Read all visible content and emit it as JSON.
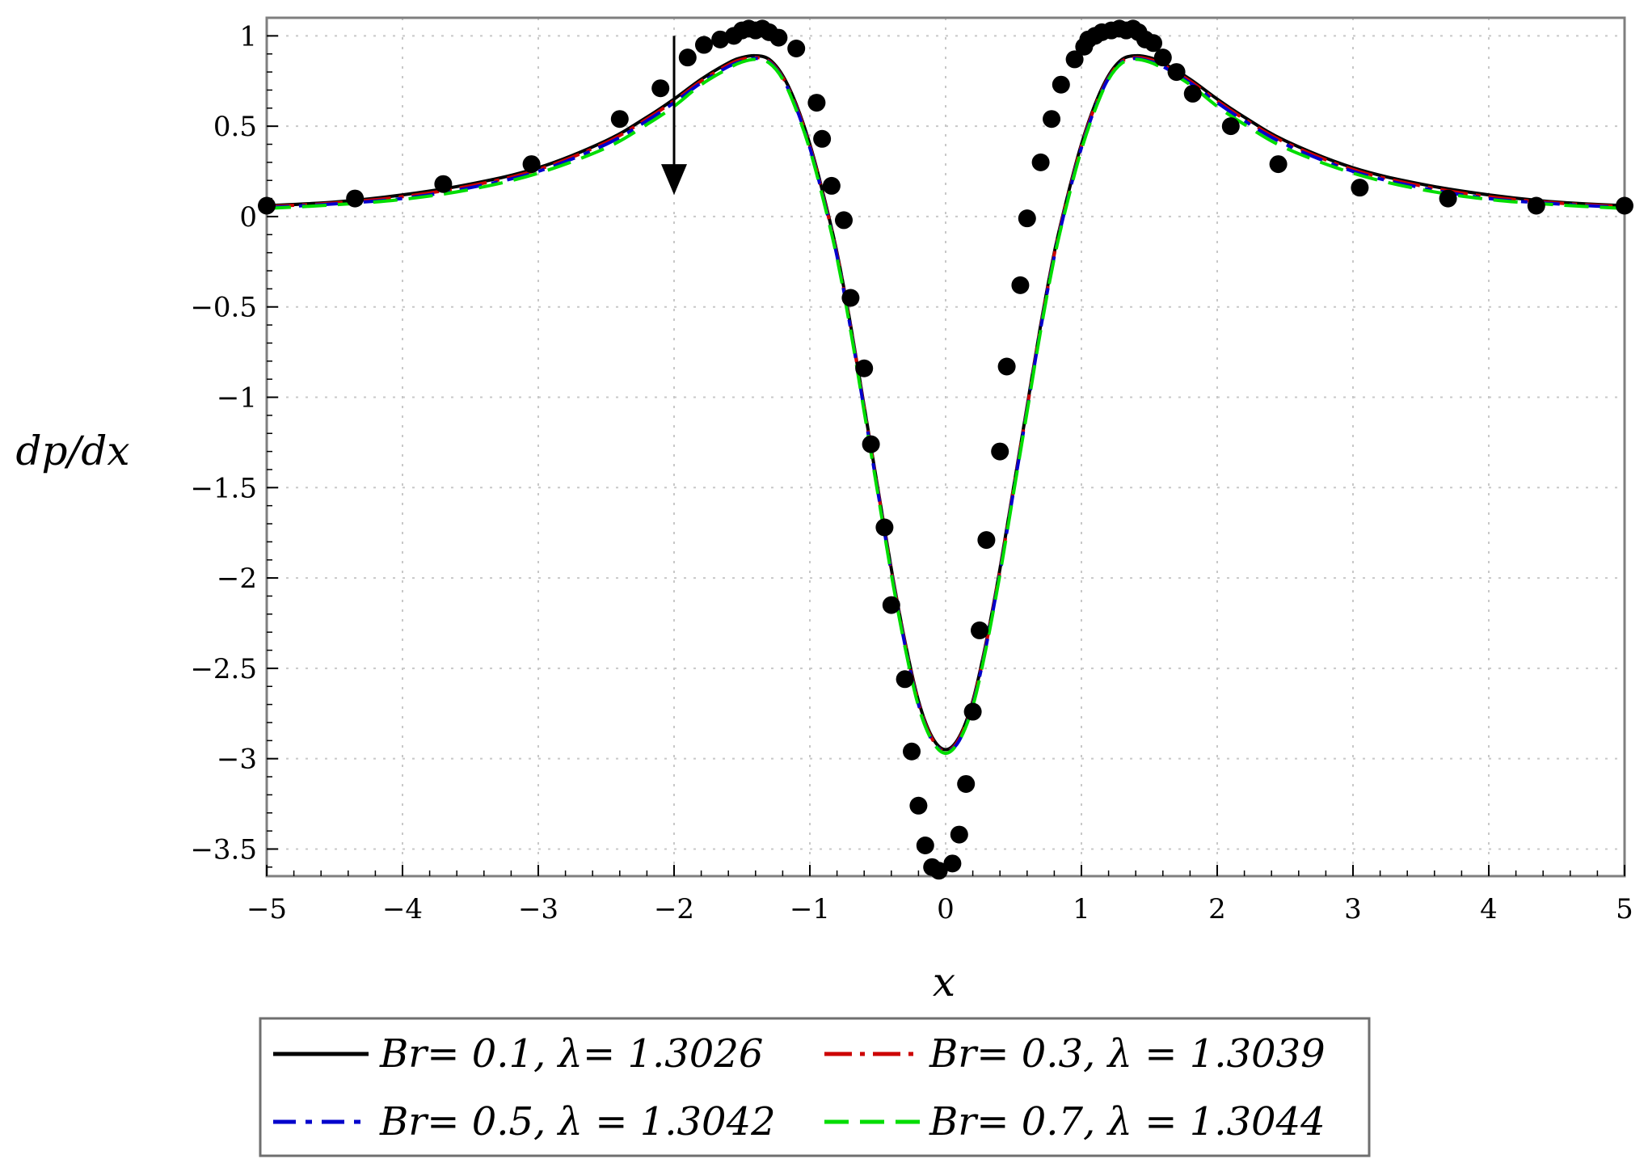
{
  "chart_data": {
    "type": "line",
    "xlabel": "x",
    "ylabel": "dp/dx",
    "xlim": [
      -5,
      5
    ],
    "ylim": [
      -3.65,
      1.1
    ],
    "x_ticks": [
      -5,
      -4,
      -3,
      -2,
      -1,
      0,
      1,
      2,
      3,
      4,
      5
    ],
    "y_ticks": [
      1,
      0.5,
      0,
      -0.5,
      -1,
      -1.5,
      -2,
      -2.5,
      -3,
      -3.5
    ],
    "x_tick_labels": [
      "−5",
      "−4",
      "−3",
      "−2",
      "−1",
      "0",
      "1",
      "2",
      "3",
      "4",
      "5"
    ],
    "y_tick_labels": [
      "1",
      "0.5",
      "0",
      "−0.5",
      "−1",
      "−1.5",
      "−2",
      "−2.5",
      "−3",
      "−3.5"
    ],
    "grid": true,
    "legend_position": "bottom",
    "annotation": {
      "type": "arrow-down",
      "x": -2,
      "y_from": 1.0,
      "y_to": 0.12
    },
    "series": [
      {
        "name": "Br= 0.1, λ= 1.3026",
        "color": "#000000",
        "dash": "solid",
        "x": [
          -5,
          -4.5,
          -4,
          -3.5,
          -3,
          -2.5,
          -2.2,
          -2,
          -1.8,
          -1.6,
          -1.5,
          -1.4,
          -1.3,
          -1.2,
          -1.1,
          -1.0,
          -0.9,
          -0.8,
          -0.7,
          -0.6,
          -0.5,
          -0.4,
          -0.3,
          -0.2,
          -0.1,
          0,
          0.1,
          0.2,
          0.3,
          0.4,
          0.5,
          0.6,
          0.7,
          0.8,
          0.9,
          1.0,
          1.1,
          1.2,
          1.3,
          1.4,
          1.5,
          1.6,
          1.8,
          2.0,
          2.2,
          2.5,
          3.0,
          3.5,
          4.0,
          4.5,
          5.0
        ],
        "y": [
          0.06,
          0.08,
          0.12,
          0.18,
          0.27,
          0.42,
          0.55,
          0.65,
          0.76,
          0.85,
          0.88,
          0.89,
          0.87,
          0.78,
          0.62,
          0.4,
          0.12,
          -0.2,
          -0.6,
          -1.05,
          -1.5,
          -1.95,
          -2.35,
          -2.68,
          -2.88,
          -2.95,
          -2.88,
          -2.68,
          -2.35,
          -1.95,
          -1.5,
          -1.05,
          -0.6,
          -0.2,
          0.12,
          0.4,
          0.62,
          0.78,
          0.87,
          0.89,
          0.88,
          0.85,
          0.76,
          0.65,
          0.55,
          0.42,
          0.27,
          0.18,
          0.12,
          0.08,
          0.06
        ]
      },
      {
        "name": "Br= 0.3, λ = 1.3039",
        "color": "#cc0000",
        "dash": "dash-dot",
        "x": [
          -5,
          -4.5,
          -4,
          -3.5,
          -3,
          -2.5,
          -2.2,
          -2,
          -1.8,
          -1.6,
          -1.5,
          -1.4,
          -1.3,
          -1.2,
          -1.1,
          -1.0,
          -0.9,
          -0.8,
          -0.7,
          -0.6,
          -0.5,
          -0.4,
          -0.3,
          -0.2,
          -0.1,
          0,
          0.1,
          0.2,
          0.3,
          0.4,
          0.5,
          0.6,
          0.7,
          0.8,
          0.9,
          1.0,
          1.1,
          1.2,
          1.3,
          1.4,
          1.5,
          1.6,
          1.8,
          2.0,
          2.2,
          2.5,
          3.0,
          3.5,
          4.0,
          4.5,
          5.0
        ],
        "y": [
          0.055,
          0.075,
          0.11,
          0.17,
          0.26,
          0.41,
          0.54,
          0.64,
          0.75,
          0.84,
          0.87,
          0.88,
          0.86,
          0.77,
          0.61,
          0.39,
          0.11,
          -0.21,
          -0.61,
          -1.06,
          -1.51,
          -1.96,
          -2.36,
          -2.69,
          -2.89,
          -2.96,
          -2.89,
          -2.69,
          -2.36,
          -1.96,
          -1.51,
          -1.06,
          -0.61,
          -0.21,
          0.11,
          0.39,
          0.61,
          0.77,
          0.86,
          0.88,
          0.87,
          0.84,
          0.75,
          0.64,
          0.54,
          0.41,
          0.26,
          0.17,
          0.11,
          0.075,
          0.055
        ]
      },
      {
        "name": "Br= 0.5, λ = 1.3042",
        "color": "#0000cc",
        "dash": "long-dash-dot",
        "x": [
          -5,
          -4.5,
          -4,
          -3.5,
          -3,
          -2.5,
          -2.2,
          -2,
          -1.8,
          -1.6,
          -1.5,
          -1.4,
          -1.3,
          -1.2,
          -1.1,
          -1.0,
          -0.9,
          -0.8,
          -0.7,
          -0.6,
          -0.5,
          -0.4,
          -0.3,
          -0.2,
          -0.1,
          0,
          0.1,
          0.2,
          0.3,
          0.4,
          0.5,
          0.6,
          0.7,
          0.8,
          0.9,
          1.0,
          1.1,
          1.2,
          1.3,
          1.4,
          1.5,
          1.6,
          1.8,
          2.0,
          2.2,
          2.5,
          3.0,
          3.5,
          4.0,
          4.5,
          5.0
        ],
        "y": [
          0.05,
          0.07,
          0.1,
          0.16,
          0.25,
          0.4,
          0.53,
          0.63,
          0.74,
          0.83,
          0.86,
          0.875,
          0.855,
          0.765,
          0.6,
          0.38,
          0.1,
          -0.22,
          -0.62,
          -1.07,
          -1.52,
          -1.97,
          -2.37,
          -2.7,
          -2.9,
          -2.96,
          -2.9,
          -2.7,
          -2.37,
          -1.97,
          -1.52,
          -1.07,
          -0.62,
          -0.22,
          0.1,
          0.38,
          0.6,
          0.765,
          0.855,
          0.875,
          0.86,
          0.83,
          0.74,
          0.63,
          0.53,
          0.4,
          0.25,
          0.16,
          0.1,
          0.07,
          0.05
        ]
      },
      {
        "name": "Br= 0.7, λ = 1.3044",
        "color": "#00dd00",
        "dash": "long-dash",
        "x": [
          -5,
          -4.5,
          -4,
          -3.5,
          -3,
          -2.5,
          -2.2,
          -2,
          -1.8,
          -1.6,
          -1.5,
          -1.4,
          -1.3,
          -1.2,
          -1.1,
          -1.0,
          -0.9,
          -0.8,
          -0.7,
          -0.6,
          -0.5,
          -0.4,
          -0.3,
          -0.2,
          -0.1,
          0,
          0.1,
          0.2,
          0.3,
          0.4,
          0.5,
          0.6,
          0.7,
          0.8,
          0.9,
          1.0,
          1.1,
          1.2,
          1.3,
          1.4,
          1.5,
          1.6,
          1.8,
          2.0,
          2.2,
          2.5,
          3.0,
          3.5,
          4.0,
          4.5,
          5.0
        ],
        "y": [
          0.045,
          0.065,
          0.095,
          0.15,
          0.24,
          0.38,
          0.51,
          0.61,
          0.73,
          0.82,
          0.855,
          0.87,
          0.85,
          0.76,
          0.59,
          0.37,
          0.09,
          -0.23,
          -0.63,
          -1.08,
          -1.53,
          -1.98,
          -2.38,
          -2.71,
          -2.9,
          -2.97,
          -2.9,
          -2.71,
          -2.38,
          -1.98,
          -1.53,
          -1.08,
          -0.63,
          -0.23,
          0.09,
          0.37,
          0.59,
          0.76,
          0.85,
          0.87,
          0.855,
          0.82,
          0.73,
          0.61,
          0.51,
          0.38,
          0.24,
          0.15,
          0.095,
          0.065,
          0.045
        ]
      },
      {
        "name": "",
        "type": "scatter",
        "color": "#000000",
        "x": [
          -5,
          -4.35,
          -3.7,
          -3.05,
          -2.4,
          -2.1,
          -1.9,
          -1.78,
          -1.66,
          -1.56,
          -1.5,
          -1.45,
          -1.4,
          -1.35,
          -1.3,
          -1.23,
          -1.1,
          -0.95,
          -0.91,
          -0.84,
          -0.75,
          -0.7,
          -0.6,
          -0.55,
          -0.45,
          -0.4,
          -0.3,
          -0.25,
          -0.2,
          -0.15,
          -0.1,
          -0.05,
          0.05,
          0.1,
          0.15,
          0.2,
          0.25,
          0.3,
          0.4,
          0.45,
          0.55,
          0.6,
          0.7,
          0.78,
          0.85,
          0.95,
          1.02,
          1.05,
          1.1,
          1.15,
          1.22,
          1.28,
          1.33,
          1.38,
          1.42,
          1.47,
          1.53,
          1.6,
          1.7,
          1.82,
          2.1,
          2.45,
          3.05,
          3.7,
          4.35,
          5.0
        ],
        "y": [
          0.06,
          0.1,
          0.18,
          0.29,
          0.54,
          0.71,
          0.88,
          0.95,
          0.98,
          1.0,
          1.03,
          1.04,
          1.03,
          1.04,
          1.02,
          0.99,
          0.93,
          0.63,
          0.43,
          0.17,
          -0.02,
          -0.45,
          -0.84,
          -1.26,
          -1.72,
          -2.15,
          -2.56,
          -2.96,
          -3.26,
          -3.48,
          -3.6,
          -3.62,
          -3.58,
          -3.42,
          -3.14,
          -2.74,
          -2.29,
          -1.79,
          -1.3,
          -0.83,
          -0.38,
          -0.01,
          0.3,
          0.54,
          0.73,
          0.87,
          0.94,
          0.98,
          1.0,
          1.02,
          1.03,
          1.04,
          1.03,
          1.04,
          1.02,
          0.98,
          0.96,
          0.88,
          0.8,
          0.68,
          0.5,
          0.29,
          0.16,
          0.1,
          0.06,
          0.06
        ]
      }
    ]
  }
}
